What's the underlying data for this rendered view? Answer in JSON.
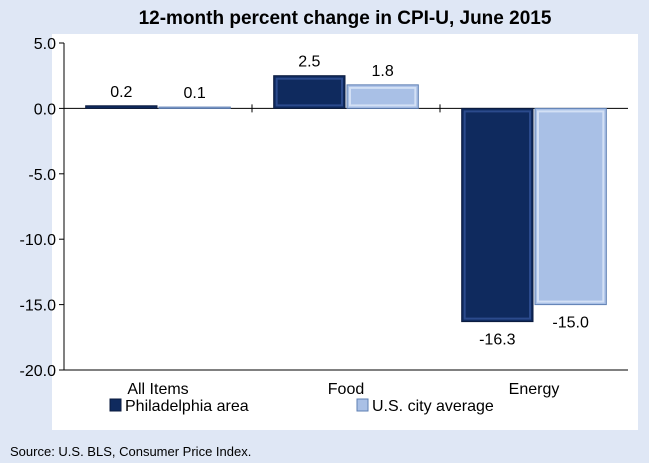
{
  "chart_data": {
    "type": "bar",
    "title": "12-month percent change in CPI-U, June 2015",
    "categories": [
      "All Items",
      "Food",
      "Energy"
    ],
    "series": [
      {
        "name": "Philadelphia area",
        "values": [
          0.2,
          2.5,
          -16.3
        ],
        "labels": [
          "0.2",
          "2.5",
          "-16.3"
        ],
        "color": "#0f2a5e"
      },
      {
        "name": "U.S. city average",
        "values": [
          0.1,
          1.8,
          -15.0
        ],
        "labels": [
          "0.1",
          "1.8",
          "-15.0"
        ],
        "color": "#a9c0e6"
      }
    ],
    "ylim": [
      -20,
      5
    ],
    "yticks": [
      5,
      0,
      -5,
      -10,
      -15,
      -20
    ],
    "ytick_labels": [
      "5.0",
      "0.0",
      "-5.0",
      "-10.0",
      "-15.0",
      "-20.0"
    ],
    "xlabel": "",
    "ylabel": "",
    "grid": false,
    "legend_position": "bottom"
  },
  "source": "Source: U.S. BLS, Consumer Price Index."
}
